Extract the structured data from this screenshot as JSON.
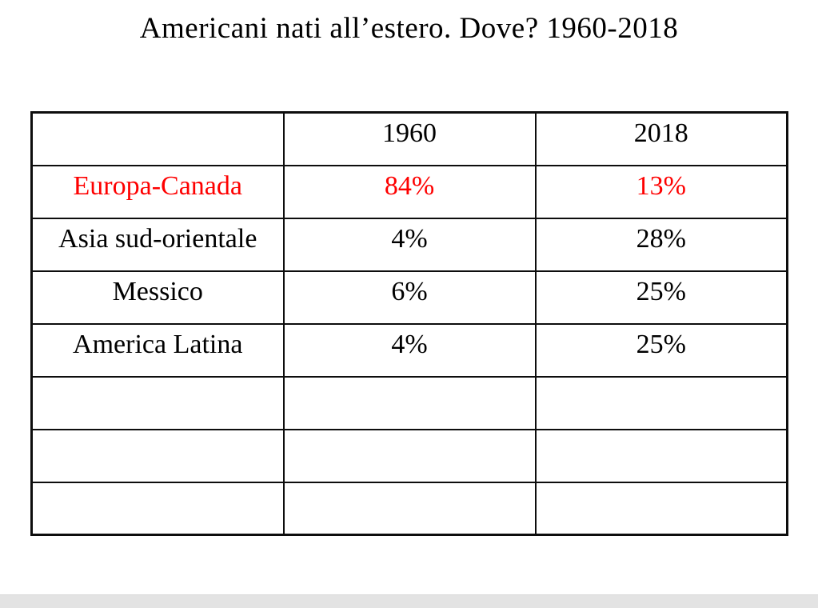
{
  "slide": {
    "title": "Americani nati all’estero. Dove? 1960-2018"
  },
  "table": {
    "header": [
      "",
      "1960",
      "2018"
    ],
    "rows": [
      [
        "Europa-Canada",
        "84%",
        "13%"
      ],
      [
        "Asia sud-orientale",
        "4%",
        "28%"
      ],
      [
        "Messico",
        "6%",
        "25%"
      ],
      [
        "America Latina",
        "4%",
        "25%"
      ],
      [
        "",
        "",
        ""
      ],
      [
        "",
        "",
        ""
      ],
      [
        "",
        "",
        ""
      ]
    ]
  },
  "chart_data": {
    "type": "table",
    "title": "Americani nati all’estero. Dove? 1960-2018",
    "columns": [
      "",
      "1960",
      "2018"
    ],
    "rows": [
      [
        "Europa-Canada",
        "84%",
        "13%"
      ],
      [
        "Asia sud-orientale",
        "4%",
        "28%"
      ],
      [
        "Messico",
        "6%",
        "25%"
      ],
      [
        "America Latina",
        "4%",
        "25%"
      ]
    ],
    "highlighted_row": "Europa-Canada"
  },
  "colors": {
    "highlight-red": "#fe0000",
    "text-black": "#000000",
    "bottom-bar-bg": "#e3e3e3",
    "bottom-bar-border": "#d7d7d7"
  }
}
